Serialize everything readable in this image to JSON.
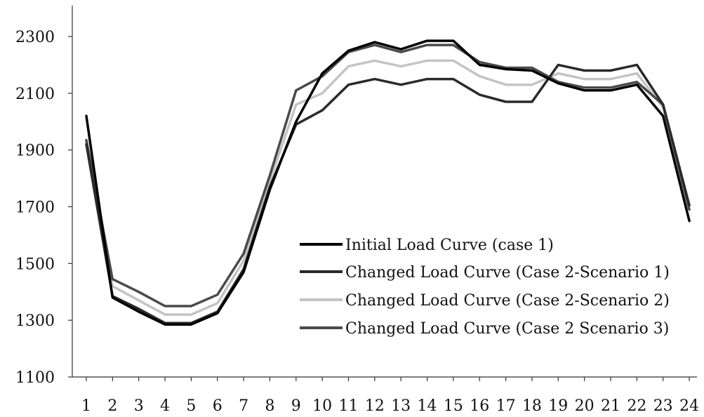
{
  "chart_data": {
    "type": "line",
    "x": [
      "1",
      "2",
      "3",
      "4",
      "5",
      "6",
      "7",
      "8",
      "9",
      "10",
      "11",
      "12",
      "13",
      "14",
      "15",
      "16",
      "17",
      "18",
      "19",
      "20",
      "21",
      "22",
      "23",
      "24"
    ],
    "ylim": [
      1100,
      2300
    ],
    "yticks": [
      1100,
      1300,
      1500,
      1700,
      1900,
      2100,
      2300
    ],
    "ytick_labels": [
      "1100",
      "1300",
      "1500",
      "1700",
      "1900",
      "2100",
      "2300"
    ],
    "grid": false,
    "legend_position": "lower-right",
    "series": [
      {
        "name": "Initial Load Curve (case 1)",
        "color": "#000000",
        "values": [
          2020,
          1380,
          1330,
          1285,
          1285,
          1325,
          1470,
          1760,
          2000,
          2170,
          2250,
          2280,
          2255,
          2285,
          2285,
          2200,
          2185,
          2180,
          2135,
          2110,
          2110,
          2130,
          2020,
          1650
        ]
      },
      {
        "name": "Changed Load Curve (Case 2-Scenario 1)",
        "color": "#2a2a2a",
        "values": [
          1920,
          1385,
          1340,
          1290,
          1290,
          1330,
          1480,
          1770,
          1990,
          2040,
          2130,
          2150,
          2130,
          2150,
          2150,
          2095,
          2070,
          2070,
          2200,
          2180,
          2180,
          2200,
          2060,
          1705
        ]
      },
      {
        "name": "Changed Load Curve (Case 2-Scenario 2)",
        "color": "#c4c4c4",
        "values": [
          1930,
          1420,
          1370,
          1320,
          1320,
          1360,
          1510,
          1790,
          2060,
          2100,
          2195,
          2215,
          2195,
          2215,
          2215,
          2160,
          2130,
          2130,
          2170,
          2150,
          2150,
          2170,
          2050,
          1690
        ]
      },
      {
        "name": "Changed Load Curve (Case 2 Scenario 3)",
        "color": "#4a4a4a",
        "values": [
          1935,
          1445,
          1400,
          1350,
          1350,
          1390,
          1535,
          1810,
          2110,
          2160,
          2245,
          2270,
          2245,
          2270,
          2270,
          2210,
          2190,
          2190,
          2140,
          2120,
          2120,
          2140,
          2060,
          1690
        ]
      }
    ]
  }
}
